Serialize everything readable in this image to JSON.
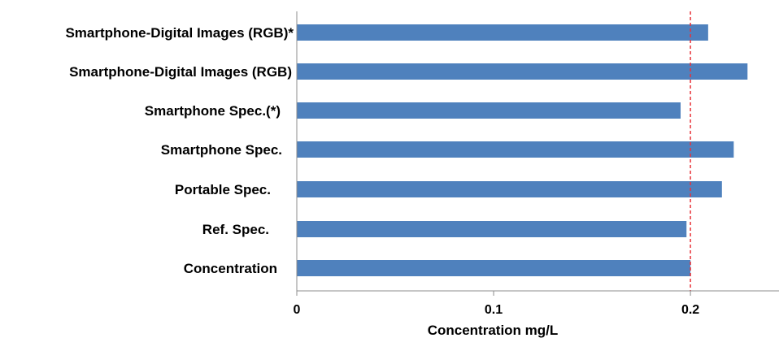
{
  "chart_data": {
    "type": "bar",
    "orientation": "horizontal",
    "categories": [
      "Smartphone-Digital Images (RGB)*",
      "Smartphone-Digital Images (RGB)",
      "Smartphone Spec.(*)",
      "Smartphone Spec.",
      "Portable Spec.",
      "Ref. Spec.",
      "Concentration"
    ],
    "values": [
      0.209,
      0.229,
      0.195,
      0.222,
      0.216,
      0.198,
      0.2
    ],
    "xlabel": "Concentration mg/L",
    "ylabel": "",
    "xlim": [
      0,
      0.245
    ],
    "xticks": [
      0,
      0.1,
      0.2
    ],
    "xtick_labels": [
      "0",
      "0.1",
      "0.2"
    ],
    "reference_line": {
      "x": 0.2,
      "style": "dashed",
      "color": "#e8343a"
    },
    "bar_color": "#4f81bd",
    "grid": false,
    "legend": "none"
  }
}
